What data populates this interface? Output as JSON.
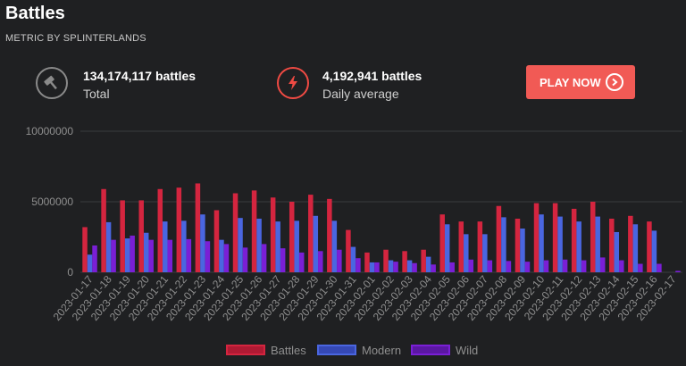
{
  "header": {
    "title": "Battles",
    "subtitle": "METRIC BY SPLINTERLANDS"
  },
  "stats": [
    {
      "icon": "gavel-icon",
      "value": "134,174,117 battles",
      "label": "Total"
    },
    {
      "icon": "lightning-icon",
      "value": "4,192,941 battles",
      "label": "Daily average"
    }
  ],
  "play_button": {
    "label": "PLAY NOW",
    "icon": "chevron-right-circle-icon"
  },
  "colors": {
    "battles": "#d4253f",
    "modern": "#4a66e0",
    "wild": "#7a1fd6",
    "accent": "#f15a55"
  },
  "chart_data": {
    "type": "bar",
    "ylim": [
      0,
      10000000
    ],
    "yticks": [
      0,
      5000000,
      10000000
    ],
    "ytick_labels": [
      "0",
      "5000000",
      "10000000"
    ],
    "categories": [
      "2023-01-17",
      "2023-01-18",
      "2023-01-19",
      "2023-01-20",
      "2023-01-21",
      "2023-01-22",
      "2023-01-23",
      "2023-01-24",
      "2023-01-25",
      "2023-01-26",
      "2023-01-27",
      "2023-01-28",
      "2023-01-29",
      "2023-01-30",
      "2023-01-31",
      "2023-02-01",
      "2023-02-02",
      "2023-02-03",
      "2023-02-04",
      "2023-02-05",
      "2023-02-06",
      "2023-02-07",
      "2023-02-08",
      "2023-02-09",
      "2023-02-10",
      "2023-02-11",
      "2023-02-12",
      "2023-02-13",
      "2023-02-14",
      "2023-02-15",
      "2023-02-16",
      "2023-02-17"
    ],
    "series": [
      {
        "name": "Battles",
        "values": [
          3200000,
          5900000,
          5100000,
          5100000,
          5900000,
          6000000,
          6300000,
          4400000,
          5600000,
          5800000,
          5300000,
          5000000,
          5500000,
          5200000,
          3000000,
          1400000,
          1600000,
          1500000,
          1600000,
          4100000,
          3600000,
          3600000,
          4700000,
          3800000,
          4900000,
          4900000,
          4500000,
          5000000,
          3800000,
          4000000,
          3600000,
          0
        ]
      },
      {
        "name": "Modern",
        "values": [
          1250000,
          3550000,
          2400000,
          2800000,
          3600000,
          3650000,
          4100000,
          2300000,
          3850000,
          3800000,
          3600000,
          3650000,
          4000000,
          3650000,
          1800000,
          700000,
          850000,
          850000,
          1100000,
          3400000,
          2700000,
          2700000,
          3900000,
          3100000,
          4100000,
          3950000,
          3600000,
          3950000,
          2850000,
          3400000,
          2950000,
          0
        ]
      },
      {
        "name": "Wild",
        "values": [
          1900000,
          2300000,
          2600000,
          2300000,
          2300000,
          2350000,
          2200000,
          2000000,
          1750000,
          2000000,
          1700000,
          1400000,
          1500000,
          1600000,
          1000000,
          700000,
          750000,
          650000,
          550000,
          700000,
          900000,
          850000,
          800000,
          750000,
          850000,
          900000,
          850000,
          1050000,
          850000,
          600000,
          600000,
          100000
        ]
      }
    ]
  }
}
